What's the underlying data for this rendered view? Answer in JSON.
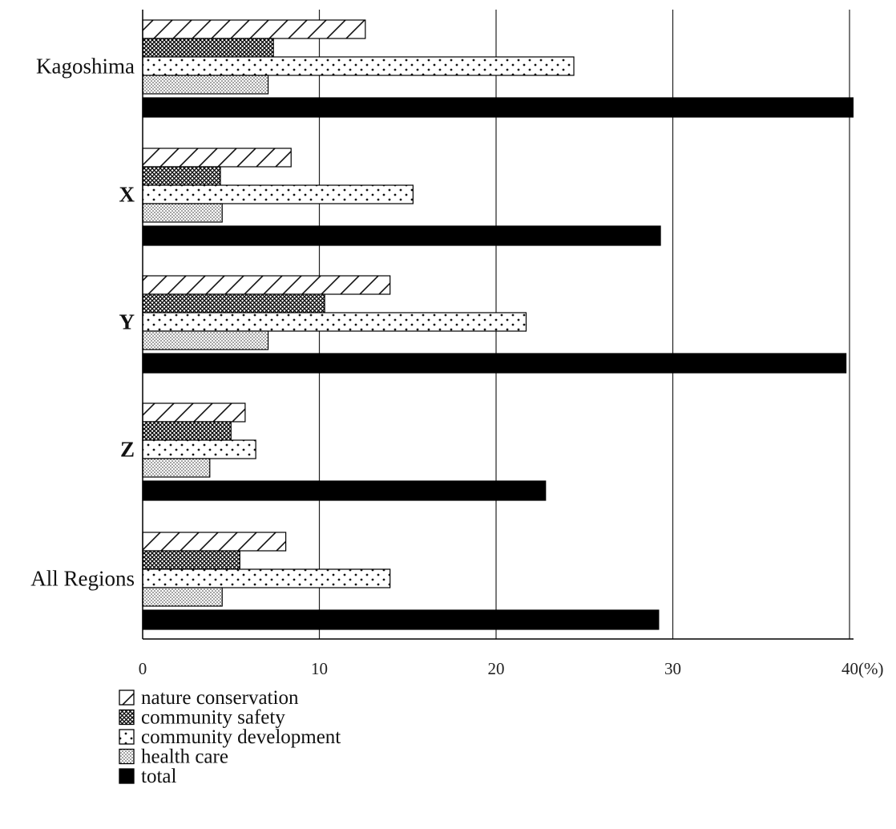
{
  "chart_data": {
    "type": "bar",
    "orientation": "horizontal",
    "categories": [
      "Kagoshima",
      "X",
      "Y",
      "Z",
      "All Regions"
    ],
    "series": [
      {
        "name": "nature conservation",
        "pattern": "diagonal-hatch",
        "values": [
          12.6,
          8.4,
          14.0,
          5.8,
          8.1
        ]
      },
      {
        "name": "community safety",
        "pattern": "crosshatch",
        "values": [
          7.4,
          4.4,
          10.3,
          5.0,
          5.5
        ]
      },
      {
        "name": "community development",
        "pattern": "sparse-dots",
        "values": [
          24.4,
          15.3,
          21.7,
          6.4,
          14.0
        ]
      },
      {
        "name": "health care",
        "pattern": "dense-dots",
        "values": [
          7.1,
          4.5,
          7.1,
          3.8,
          4.5
        ]
      },
      {
        "name": "total",
        "pattern": "solid",
        "values": [
          40.2,
          29.3,
          39.8,
          22.8,
          29.2
        ]
      }
    ],
    "xlim": [
      0,
      40
    ],
    "xticks": [
      "0",
      "10",
      "20",
      "30",
      "40(%)"
    ],
    "grid": "vertical",
    "legend": "bottom-left",
    "colors": {
      "fill": "#000000",
      "background": "#ffffff"
    }
  }
}
